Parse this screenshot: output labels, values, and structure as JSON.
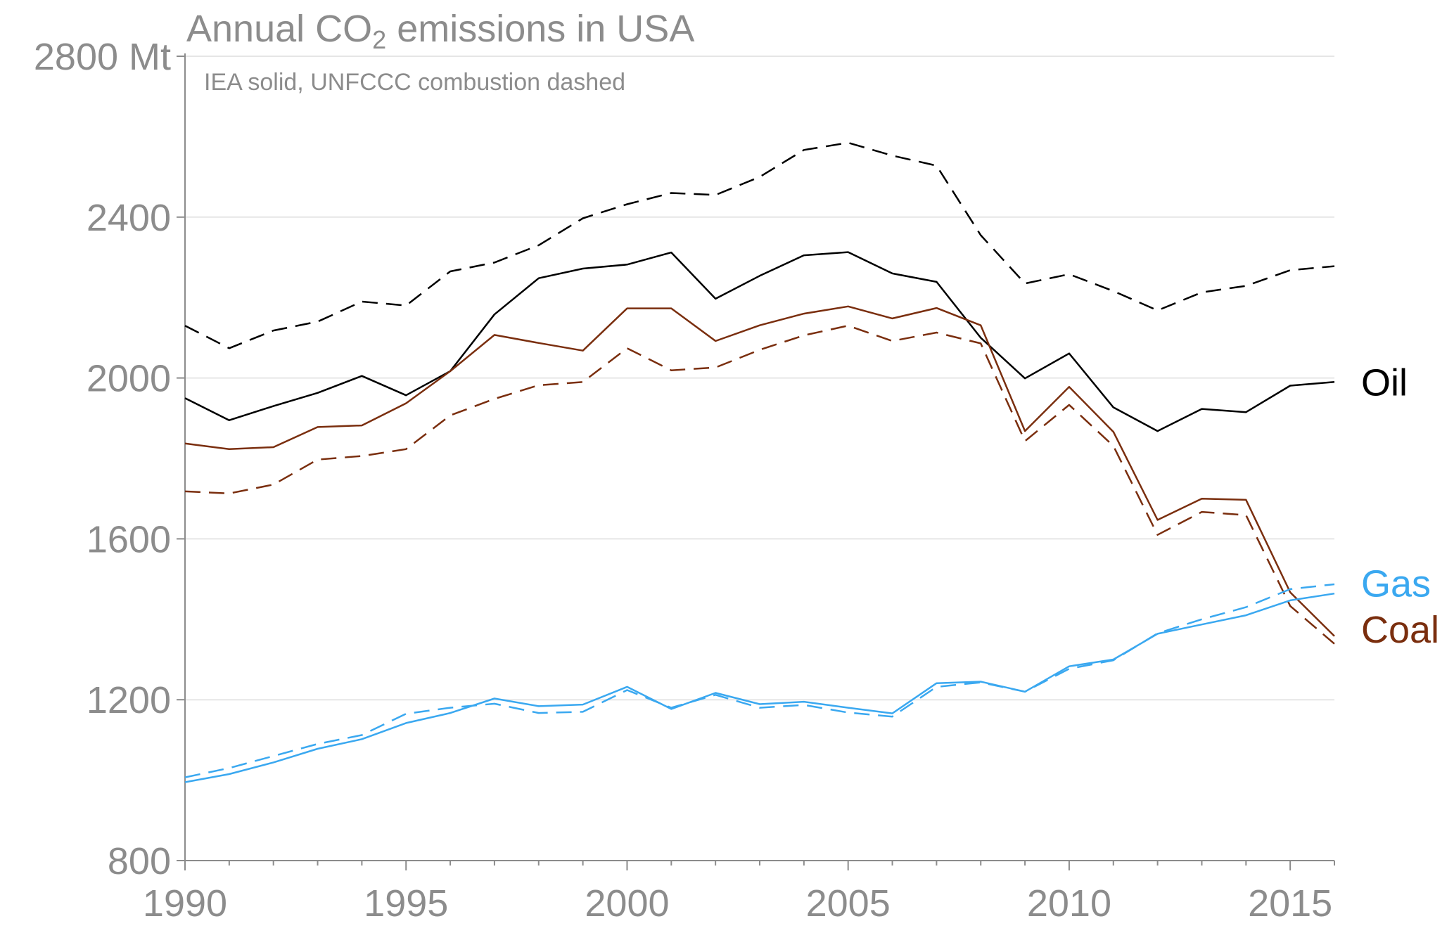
{
  "chart_data": {
    "type": "line",
    "title_main": "Annual CO",
    "title_sub": "2",
    "title_rest": " emissions in USA",
    "subtitle": "IEA solid, UNFCCC combustion dashed",
    "y_unit_label": "2800 Mt",
    "x": [
      1990,
      1991,
      1992,
      1993,
      1994,
      1995,
      1996,
      1997,
      1998,
      1999,
      2000,
      2001,
      2002,
      2003,
      2004,
      2005,
      2006,
      2007,
      2008,
      2009,
      2010,
      2011,
      2012,
      2013,
      2014,
      2015,
      2016
    ],
    "xlim": [
      1990,
      2016
    ],
    "ylim": [
      800,
      2800
    ],
    "x_ticks": [
      1990,
      1995,
      2000,
      2005,
      2010,
      2015
    ],
    "y_ticks": [
      800,
      1200,
      1600,
      2000,
      2400,
      2800
    ],
    "y_tick_labels": [
      "800",
      "1200",
      "1600",
      "2000",
      "2400",
      "2800 Mt"
    ],
    "grid": true,
    "colors": {
      "oil": "#000000",
      "coal": "#7a2e0e",
      "gas": "#3aa8f0",
      "grid": "#e6e6e6",
      "axis": "#8c8c8c"
    },
    "series": [
      {
        "name": "Oil",
        "key": "oil",
        "source": "IEA",
        "dashed": false,
        "values": [
          1950,
          1895,
          1930,
          1963,
          2005,
          1957,
          2017,
          2158,
          2248,
          2272,
          2282,
          2312,
          2197,
          2254,
          2305,
          2313,
          2260,
          2239,
          2100,
          1999,
          2061,
          1927,
          1868,
          1923,
          1915,
          1981,
          1990
        ]
      },
      {
        "name": "Oil",
        "key": "oil",
        "source": "UNFCCC",
        "dashed": true,
        "values": [
          2130,
          2074,
          2118,
          2140,
          2190,
          2180,
          2265,
          2287,
          2330,
          2397,
          2432,
          2460,
          2455,
          2500,
          2567,
          2585,
          2553,
          2528,
          2355,
          2235,
          2258,
          2216,
          2168,
          2213,
          2229,
          2268,
          2278
        ]
      },
      {
        "name": "Coal",
        "key": "coal",
        "source": "IEA",
        "dashed": false,
        "values": [
          1837,
          1823,
          1828,
          1878,
          1882,
          1937,
          2017,
          2107,
          2087,
          2068,
          2173,
          2173,
          2092,
          2131,
          2160,
          2178,
          2148,
          2174,
          2131,
          1868,
          1978,
          1866,
          1647,
          1700,
          1697,
          1467,
          1358
        ]
      },
      {
        "name": "Coal",
        "key": "coal",
        "source": "UNFCCC",
        "dashed": true,
        "values": [
          1718,
          1713,
          1735,
          1797,
          1806,
          1823,
          1907,
          1948,
          1982,
          1990,
          2074,
          2019,
          2026,
          2070,
          2106,
          2130,
          2092,
          2113,
          2086,
          1843,
          1933,
          1831,
          1610,
          1667,
          1659,
          1433,
          1339
        ]
      },
      {
        "name": "Gas",
        "key": "gas",
        "source": "IEA",
        "dashed": false,
        "values": [
          995,
          1015,
          1044,
          1078,
          1102,
          1142,
          1167,
          1203,
          1184,
          1188,
          1232,
          1177,
          1217,
          1189,
          1195,
          1180,
          1166,
          1241,
          1245,
          1220,
          1283,
          1300,
          1364,
          1387,
          1410,
          1447,
          1464
        ]
      },
      {
        "name": "Gas",
        "key": "gas",
        "source": "UNFCCC",
        "dashed": true,
        "values": [
          1007,
          1030,
          1060,
          1090,
          1112,
          1165,
          1180,
          1190,
          1167,
          1170,
          1224,
          1180,
          1212,
          1180,
          1187,
          1168,
          1158,
          1232,
          1243,
          1220,
          1277,
          1298,
          1365,
          1400,
          1430,
          1475,
          1487
        ]
      }
    ],
    "labels": {
      "oil": "Oil",
      "gas": "Gas",
      "coal": "Coal"
    }
  }
}
